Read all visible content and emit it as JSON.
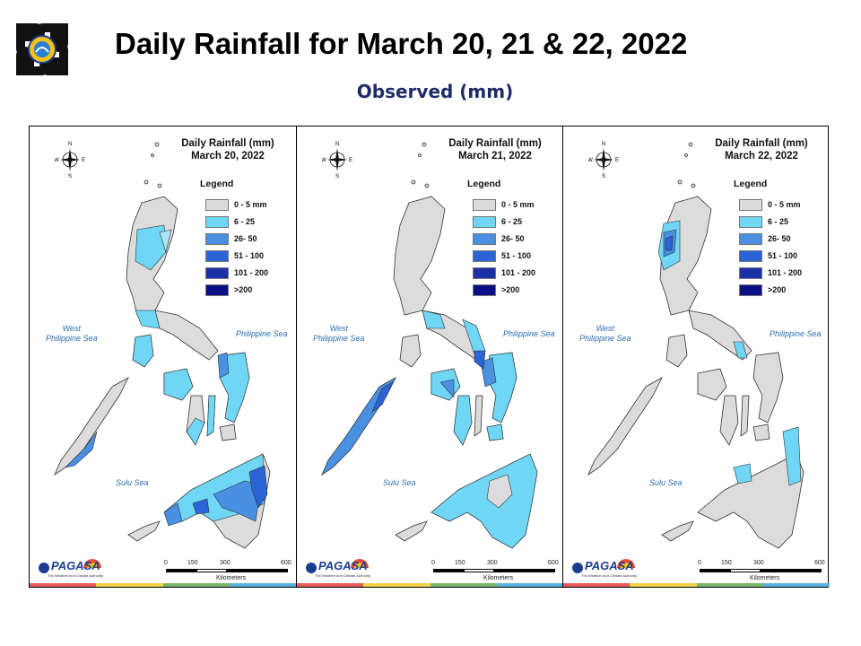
{
  "header": {
    "title": "Daily Rainfall for March 20, 21 & 22, 2022",
    "subtitle": "Observed (mm)"
  },
  "legend": {
    "title": "Legend",
    "classes": [
      {
        "label": "0 - 5 mm",
        "color": "#dcdcdc"
      },
      {
        "label": "6 - 25",
        "color": "#6fd6f6"
      },
      {
        "label": "26- 50",
        "color": "#4a90e2"
      },
      {
        "label": "51 - 100",
        "color": "#2a64d6"
      },
      {
        "label": "101 - 200",
        "color": "#1a2fa8"
      },
      {
        "label": ">200",
        "color": "#0a0f85"
      }
    ]
  },
  "panels": [
    {
      "title_line1": "Daily Rainfall (mm)",
      "title_line2": "March 20, 2022"
    },
    {
      "title_line1": "Daily Rainfall (mm)",
      "title_line2": "March 21, 2022"
    },
    {
      "title_line1": "Daily Rainfall (mm)",
      "title_line2": "March 22, 2022"
    }
  ],
  "seas": {
    "west_line1": "West",
    "west_line2": "Philippine Sea",
    "east": "Philippine Sea",
    "sulu": "Sulu Sea"
  },
  "compass": {
    "n": "N",
    "s": "S",
    "e": "E",
    "w": "W"
  },
  "scale": {
    "ticks": [
      "0",
      "150",
      "300",
      "600"
    ],
    "unit": "Kilometers"
  },
  "brand": {
    "name": "PAGASA",
    "dost": "DOST",
    "tagline": "The Weather and Climate Authority"
  },
  "colors": {
    "no_rain": "#dcdcdc",
    "light": "#6fd6f6",
    "moderate": "#4a90e2",
    "heavy": "#2a64d6",
    "outline": "#333333",
    "title_blue": "#1f2a6b",
    "sea_text": "#2a6fb0"
  }
}
